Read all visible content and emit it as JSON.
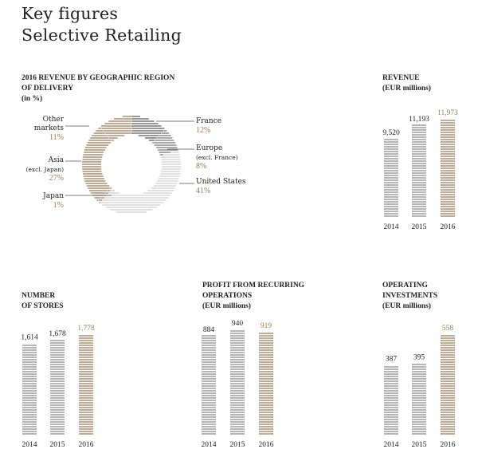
{
  "title": {
    "line1": "Key figures",
    "line2": "Selective Retailing"
  },
  "colors": {
    "accent": "#9b7b57",
    "stripe_dark": "#555555",
    "stripe_light": "#c4c4c4",
    "text": "#222222"
  },
  "chart_data": [
    {
      "id": "revenue-by-region",
      "type": "pie",
      "title_lines": [
        "2016 REVENUE BY GEOGRAPHIC REGION",
        "OF DELIVERY",
        "(in %)"
      ],
      "slices": [
        {
          "name": "France",
          "sub": "",
          "value": 12,
          "label": "12%"
        },
        {
          "name": "Europe",
          "sub": "(excl. France)",
          "value": 8,
          "label": "8%"
        },
        {
          "name": "United States",
          "sub": "",
          "value": 41,
          "label": "41%"
        },
        {
          "name": "Japan",
          "sub": "",
          "value": 1,
          "label": "1%"
        },
        {
          "name": "Asia",
          "sub": "(excl. Japan)",
          "value": 27,
          "label": "27%"
        },
        {
          "name": "Other markets",
          "sub": "",
          "value": 11,
          "label": "11%"
        }
      ]
    },
    {
      "id": "revenue",
      "type": "bar",
      "title_lines": [
        "REVENUE",
        "(EUR millions)"
      ],
      "categories": [
        "2014",
        "2015",
        "2016"
      ],
      "values": [
        9520,
        11193,
        11973
      ],
      "value_labels": [
        "9,520",
        "11,193",
        "11,973"
      ],
      "ylim": [
        0,
        11973
      ]
    },
    {
      "id": "stores",
      "type": "bar",
      "title_lines": [
        "NUMBER",
        "OF STORES"
      ],
      "categories": [
        "2014",
        "2015",
        "2016"
      ],
      "values": [
        1614,
        1678,
        1778
      ],
      "value_labels": [
        "1,614",
        "1,678",
        "1,778"
      ],
      "ylim": [
        0,
        1778
      ]
    },
    {
      "id": "profit",
      "type": "bar",
      "title_lines": [
        "PROFIT FROM RECURRING",
        "OPERATIONS",
        "(EUR millions)"
      ],
      "categories": [
        "2014",
        "2015",
        "2016"
      ],
      "values": [
        884,
        940,
        919
      ],
      "value_labels": [
        "884",
        "940",
        "919"
      ],
      "ylim": [
        0,
        940
      ]
    },
    {
      "id": "investments",
      "type": "bar",
      "title_lines": [
        "OPERATING",
        "INVESTMENTS",
        "(EUR millions)"
      ],
      "categories": [
        "2014",
        "2015",
        "2016"
      ],
      "values": [
        387,
        395,
        558
      ],
      "value_labels": [
        "387",
        "395",
        "558"
      ],
      "ylim": [
        0,
        558
      ]
    }
  ]
}
